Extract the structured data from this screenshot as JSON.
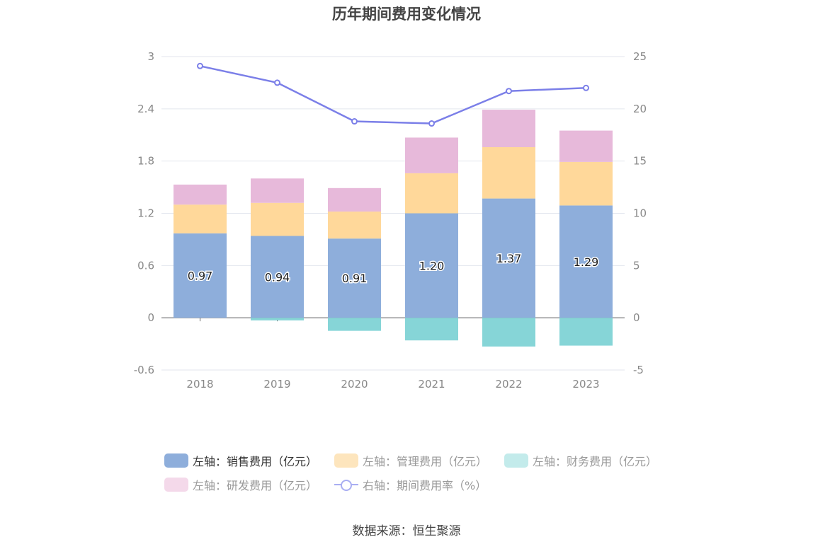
{
  "title": "历年期间费用变化情况",
  "source": "数据来源：恒生聚源",
  "legend_rows": [
    [
      {
        "label": "左轴：销售费用（亿元）",
        "color": "#8eaedb",
        "type": "bar",
        "text_color": "#333333"
      },
      {
        "label": "左轴：管理费用（亿元）",
        "color": "#fde5bd",
        "type": "bar",
        "text_color": "#999999"
      },
      {
        "label": "左轴：财务费用（亿元）",
        "color": "#c3ebeb",
        "type": "bar",
        "text_color": "#999999"
      }
    ],
    [
      {
        "label": "左轴：研发费用（亿元）",
        "color": "#f4d9ea",
        "type": "bar",
        "text_color": "#999999"
      },
      {
        "label": "右轴：期间费用率（%）",
        "color": "#a9aef2",
        "type": "line",
        "text_color": "#999999"
      }
    ]
  ],
  "chart_data": {
    "type": "bar",
    "stacked": true,
    "categories": [
      "2018",
      "2019",
      "2020",
      "2021",
      "2022",
      "2023"
    ],
    "series": [
      {
        "name": "左轴：销售费用（亿元）",
        "axis": "left",
        "color": "#8eaedb",
        "values": [
          0.97,
          0.94,
          0.91,
          1.2,
          1.37,
          1.29
        ],
        "data_labels": [
          "0.97",
          "0.94",
          "0.91",
          "1.20",
          "1.37",
          "1.29"
        ]
      },
      {
        "name": "左轴：管理费用（亿元）",
        "axis": "left",
        "color": "#ffd89a",
        "values": [
          0.33,
          0.38,
          0.31,
          0.46,
          0.59,
          0.5
        ]
      },
      {
        "name": "左轴：财务费用（亿元）",
        "axis": "left",
        "color": "#86d5d7",
        "values": [
          0.0,
          -0.03,
          -0.15,
          -0.26,
          -0.33,
          -0.32
        ]
      },
      {
        "name": "左轴：研发费用（亿元）",
        "axis": "left",
        "color": "#e7b9da",
        "values": [
          0.23,
          0.28,
          0.27,
          0.41,
          0.43,
          0.36
        ]
      },
      {
        "name": "右轴：期间费用率（%）",
        "axis": "right",
        "type": "line",
        "color": "#7b7fe8",
        "values": [
          24.1,
          22.5,
          18.8,
          18.6,
          21.7,
          22.0
        ]
      }
    ],
    "y_left": {
      "min": -0.6,
      "max": 3,
      "ticks": [
        "3",
        "2.4",
        "1.8",
        "1.2",
        "0.6",
        "0",
        "-0.6"
      ]
    },
    "y_right": {
      "min": -5,
      "max": 25,
      "ticks": [
        "25",
        "20",
        "15",
        "10",
        "5",
        "0",
        "-5"
      ]
    },
    "grid": true,
    "legend_position": "bottom"
  }
}
